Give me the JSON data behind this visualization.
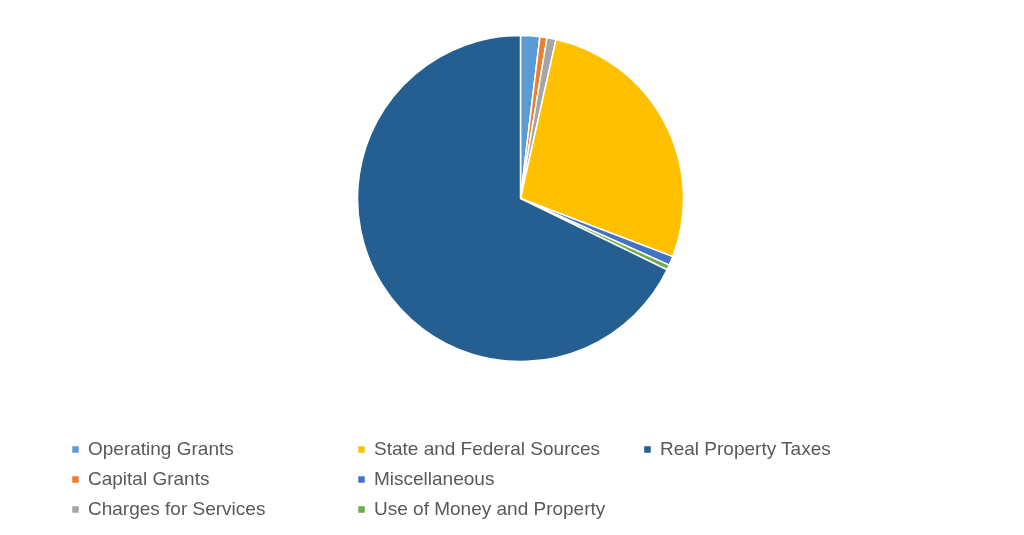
{
  "chart_data": {
    "type": "pie",
    "categories": [
      "Operating Grants",
      "Capital Grants",
      "Charges for Services",
      "State and Federal Sources",
      "Miscellaneous",
      "Use of Money and Property",
      "Real Property Taxes"
    ],
    "values": [
      1.9,
      0.7,
      0.9,
      27.3,
      0.9,
      0.5,
      67.8
    ],
    "colors": [
      "#5b9bd5",
      "#ed7d31",
      "#a5a5a5",
      "#ffc000",
      "#4472c4",
      "#70ad47",
      "#255e91"
    ],
    "legend": "bottom"
  }
}
